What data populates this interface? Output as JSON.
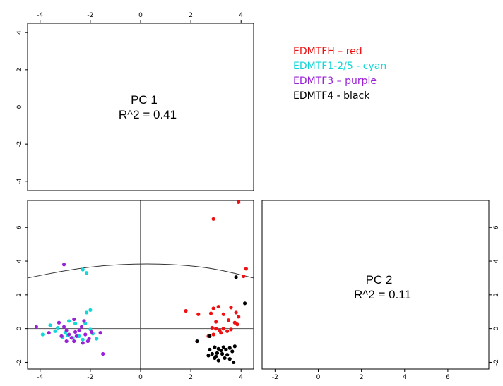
{
  "chart_data": {
    "type": "scatter",
    "title": "",
    "xlabel": "",
    "ylabel": "",
    "x_tick_labels": {
      "pc1": [
        "-4",
        "-2",
        "0",
        "2",
        "4"
      ],
      "pc2": [
        "-2",
        "0",
        "2",
        "4",
        "6"
      ]
    },
    "y_tick_labels": {
      "pc1": [
        "-4",
        "-2",
        "0",
        "2",
        "4"
      ],
      "pc2": [
        "-2",
        "0",
        "2",
        "4",
        "6"
      ]
    },
    "xlim": {
      "pc1": [
        -4.5,
        4.5
      ],
      "pc2": [
        -2.6,
        7.9
      ]
    },
    "ylim": {
      "pc1": [
        -4.5,
        4.5
      ],
      "pc2": [
        -2.4,
        7.6
      ]
    },
    "panels": {
      "pc1": {
        "label": "PC 1",
        "r2": "R^2 = 0.41"
      },
      "pc2": {
        "label": "PC 2",
        "r2": "R^2 = 0.11"
      }
    },
    "legend": [
      {
        "text": "EDMTFH – red",
        "color": "#ee1111"
      },
      {
        "text": "EDMTF1-2/5 - cyan",
        "color": "#11d7d7"
      },
      {
        "text": "EDMTF3 – purple",
        "color": "#9a22d6"
      },
      {
        "text": "EDMTF4 - black",
        "color": "#000000"
      }
    ],
    "reference_lines": {
      "vertical_x": 0,
      "horizontal_y": 0
    },
    "curve": {
      "description": "arc",
      "points": [
        [
          -4.5,
          3.0
        ],
        [
          -3,
          3.45
        ],
        [
          -1.5,
          3.75
        ],
        [
          0,
          3.85
        ],
        [
          1.5,
          3.8
        ],
        [
          3,
          3.55
        ],
        [
          4.5,
          3.0
        ]
      ]
    },
    "series": [
      {
        "name": "EDMTFH",
        "color": "#ee1111",
        "points": [
          [
            3.9,
            7.5
          ],
          [
            2.9,
            6.5
          ],
          [
            4.2,
            3.55
          ],
          [
            4.1,
            3.1
          ],
          [
            1.8,
            1.05
          ],
          [
            2.3,
            0.85
          ],
          [
            2.8,
            0.9
          ],
          [
            3.3,
            0.85
          ],
          [
            3.6,
            1.25
          ],
          [
            3.1,
            1.3
          ],
          [
            2.9,
            1.2
          ],
          [
            3.8,
            0.95
          ],
          [
            3.9,
            0.7
          ],
          [
            3.0,
            0.4
          ],
          [
            3.5,
            0.5
          ],
          [
            3.75,
            0.35
          ],
          [
            3.85,
            0.25
          ],
          [
            2.85,
            0.05
          ],
          [
            3.0,
            0.0
          ],
          [
            3.15,
            -0.1
          ],
          [
            3.3,
            0.0
          ],
          [
            3.45,
            -0.15
          ],
          [
            3.6,
            -0.05
          ],
          [
            3.2,
            -0.25
          ],
          [
            2.7,
            -0.45
          ],
          [
            2.9,
            -0.35
          ]
        ]
      },
      {
        "name": "EDMTF1-2/5",
        "color": "#11d7d7",
        "points": [
          [
            -2.3,
            3.5
          ],
          [
            -2.15,
            3.3
          ],
          [
            -2.0,
            1.1
          ],
          [
            -2.15,
            0.95
          ],
          [
            -3.9,
            -0.35
          ],
          [
            -3.6,
            0.2
          ],
          [
            -3.3,
            0.05
          ],
          [
            -3.0,
            -0.25
          ],
          [
            -2.85,
            0.45
          ],
          [
            -2.6,
            0.3
          ],
          [
            -2.45,
            -0.45
          ],
          [
            -2.2,
            0.3
          ],
          [
            -2.0,
            -0.05
          ],
          [
            -1.9,
            -0.3
          ],
          [
            -1.75,
            -0.6
          ],
          [
            -2.3,
            -0.65
          ],
          [
            -2.7,
            -0.55
          ],
          [
            -3.1,
            -0.5
          ],
          [
            -2.9,
            -0.4
          ],
          [
            -3.4,
            -0.15
          ]
        ]
      },
      {
        "name": "EDMTF3",
        "color": "#9a22d6",
        "points": [
          [
            -3.05,
            3.8
          ],
          [
            -4.15,
            0.1
          ],
          [
            -3.65,
            -0.25
          ],
          [
            -3.25,
            0.35
          ],
          [
            -3.05,
            0.1
          ],
          [
            -2.95,
            -0.1
          ],
          [
            -2.85,
            -0.35
          ],
          [
            -2.75,
            -0.55
          ],
          [
            -2.65,
            -0.75
          ],
          [
            -2.55,
            -0.45
          ],
          [
            -2.45,
            -0.1
          ],
          [
            -2.35,
            0.1
          ],
          [
            -2.2,
            -0.35
          ],
          [
            -2.05,
            -0.6
          ],
          [
            -1.95,
            -0.2
          ],
          [
            -2.1,
            -0.75
          ],
          [
            -2.3,
            -0.85
          ],
          [
            -2.6,
            -0.2
          ],
          [
            -2.95,
            -0.75
          ],
          [
            -3.15,
            -0.45
          ],
          [
            -1.6,
            -0.25
          ],
          [
            -1.5,
            -1.5
          ],
          [
            -2.65,
            0.55
          ],
          [
            -2.25,
            0.45
          ]
        ]
      },
      {
        "name": "EDMTF4",
        "color": "#000000",
        "points": [
          [
            3.8,
            3.05
          ],
          [
            4.15,
            1.5
          ],
          [
            2.25,
            -0.75
          ],
          [
            2.75,
            -0.45
          ],
          [
            2.75,
            -1.25
          ],
          [
            2.95,
            -1.1
          ],
          [
            3.1,
            -1.2
          ],
          [
            3.3,
            -1.1
          ],
          [
            3.55,
            -1.15
          ],
          [
            3.75,
            -1.05
          ],
          [
            3.65,
            -1.35
          ],
          [
            3.45,
            -1.55
          ],
          [
            3.25,
            -1.5
          ],
          [
            3.05,
            -1.45
          ],
          [
            2.85,
            -1.5
          ],
          [
            2.7,
            -1.6
          ],
          [
            2.95,
            -1.75
          ],
          [
            3.1,
            -1.9
          ],
          [
            3.35,
            -1.75
          ],
          [
            3.55,
            -1.8
          ],
          [
            3.7,
            -2.0
          ],
          [
            3.0,
            -1.65
          ],
          [
            3.2,
            -1.3
          ],
          [
            3.4,
            -1.25
          ]
        ]
      }
    ]
  }
}
